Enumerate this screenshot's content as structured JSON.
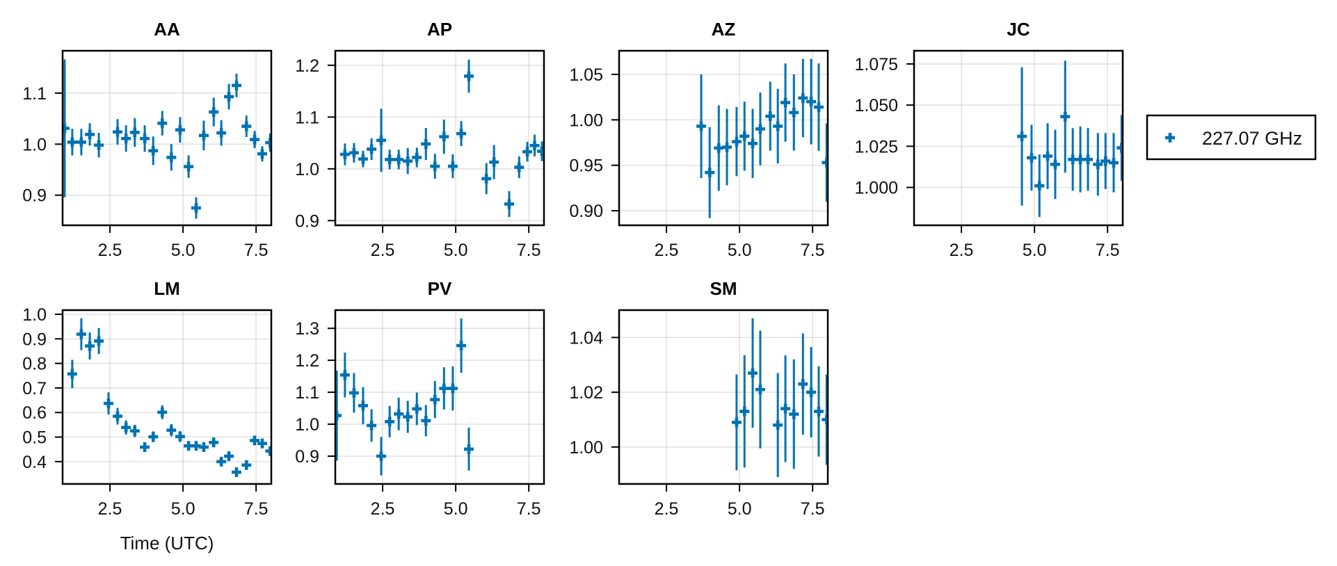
{
  "chart_data": {
    "type": "scatter",
    "subtype": "errorbar-grid",
    "xlabel": "Time (UTC)",
    "xlim": [
      0.88,
      8.02
    ],
    "xticks": [
      2.5,
      5.0,
      7.5
    ],
    "xtick_labels": [
      "2.5",
      "5.0",
      "7.5"
    ],
    "grid": true,
    "color": "#0072B2",
    "legend": {
      "placement": "right",
      "entries": [
        {
          "label": "227.07 GHz",
          "marker": "cross"
        }
      ]
    },
    "panels": [
      {
        "title": "AA",
        "ylim": [
          0.841,
          1.183
        ],
        "yticks": [
          0.9,
          1.0,
          1.1
        ],
        "ytick_labels": [
          "0.9",
          "1.0",
          "1.1"
        ],
        "show_xlabel": false,
        "points": [
          {
            "x": 0.95,
            "y": 1.031,
            "err": 0.135
          },
          {
            "x": 1.21,
            "y": 1.004,
            "err": 0.026
          },
          {
            "x": 1.52,
            "y": 1.004,
            "err": 0.026
          },
          {
            "x": 1.81,
            "y": 1.019,
            "err": 0.022
          },
          {
            "x": 2.12,
            "y": 0.998,
            "err": 0.024
          },
          {
            "x": 2.76,
            "y": 1.024,
            "err": 0.025
          },
          {
            "x": 3.05,
            "y": 1.011,
            "err": 0.026
          },
          {
            "x": 3.35,
            "y": 1.023,
            "err": 0.028
          },
          {
            "x": 3.69,
            "y": 1.011,
            "err": 0.026
          },
          {
            "x": 3.98,
            "y": 0.987,
            "err": 0.028
          },
          {
            "x": 4.29,
            "y": 1.041,
            "err": 0.024
          },
          {
            "x": 4.6,
            "y": 0.974,
            "err": 0.026
          },
          {
            "x": 4.9,
            "y": 1.028,
            "err": 0.025
          },
          {
            "x": 5.19,
            "y": 0.956,
            "err": 0.022
          },
          {
            "x": 5.45,
            "y": 0.875,
            "err": 0.021
          },
          {
            "x": 5.71,
            "y": 1.017,
            "err": 0.029
          },
          {
            "x": 6.05,
            "y": 1.063,
            "err": 0.028
          },
          {
            "x": 6.31,
            "y": 1.022,
            "err": 0.025
          },
          {
            "x": 6.57,
            "y": 1.093,
            "err": 0.025
          },
          {
            "x": 6.83,
            "y": 1.115,
            "err": 0.023
          },
          {
            "x": 7.17,
            "y": 1.035,
            "err": 0.021
          },
          {
            "x": 7.45,
            "y": 1.009,
            "err": 0.017
          },
          {
            "x": 7.71,
            "y": 0.981,
            "err": 0.015
          },
          {
            "x": 7.98,
            "y": 1.003,
            "err": 0.018
          }
        ]
      },
      {
        "title": "AP",
        "ylim": [
          0.891,
          1.228
        ],
        "yticks": [
          0.9,
          1.0,
          1.1,
          1.2
        ],
        "ytick_labels": [
          "0.9",
          "1.0",
          "1.1",
          "1.2"
        ],
        "show_xlabel": false,
        "points": [
          {
            "x": 1.21,
            "y": 1.028,
            "err": 0.021
          },
          {
            "x": 1.52,
            "y": 1.031,
            "err": 0.019
          },
          {
            "x": 1.83,
            "y": 1.019,
            "err": 0.016
          },
          {
            "x": 2.12,
            "y": 1.038,
            "err": 0.021
          },
          {
            "x": 2.45,
            "y": 1.055,
            "err": 0.061
          },
          {
            "x": 2.74,
            "y": 1.018,
            "err": 0.019
          },
          {
            "x": 3.05,
            "y": 1.018,
            "err": 0.019
          },
          {
            "x": 3.36,
            "y": 1.015,
            "err": 0.025
          },
          {
            "x": 3.67,
            "y": 1.022,
            "err": 0.019
          },
          {
            "x": 3.98,
            "y": 1.048,
            "err": 0.031
          },
          {
            "x": 4.29,
            "y": 1.005,
            "err": 0.024
          },
          {
            "x": 4.6,
            "y": 1.062,
            "err": 0.033
          },
          {
            "x": 4.9,
            "y": 1.005,
            "err": 0.023
          },
          {
            "x": 5.19,
            "y": 1.068,
            "err": 0.024
          },
          {
            "x": 5.45,
            "y": 1.179,
            "err": 0.032
          },
          {
            "x": 6.05,
            "y": 0.981,
            "err": 0.03
          },
          {
            "x": 6.31,
            "y": 1.013,
            "err": 0.033
          },
          {
            "x": 6.83,
            "y": 0.932,
            "err": 0.025
          },
          {
            "x": 7.17,
            "y": 1.003,
            "err": 0.021
          },
          {
            "x": 7.45,
            "y": 1.033,
            "err": 0.019
          },
          {
            "x": 7.7,
            "y": 1.045,
            "err": 0.021
          },
          {
            "x": 7.95,
            "y": 1.034,
            "err": 0.019
          }
        ]
      },
      {
        "title": "AZ",
        "ylim": [
          0.884,
          1.076
        ],
        "yticks": [
          0.9,
          0.95,
          1.0,
          1.05
        ],
        "ytick_labels": [
          "0.90",
          "0.95",
          "1.00",
          "1.05"
        ],
        "show_xlabel": false,
        "points": [
          {
            "x": 3.69,
            "y": 0.993,
            "err": 0.057
          },
          {
            "x": 3.98,
            "y": 0.942,
            "err": 0.05
          },
          {
            "x": 4.29,
            "y": 0.969,
            "err": 0.047
          },
          {
            "x": 4.57,
            "y": 0.97,
            "err": 0.042
          },
          {
            "x": 4.9,
            "y": 0.976,
            "err": 0.038
          },
          {
            "x": 5.17,
            "y": 0.982,
            "err": 0.038
          },
          {
            "x": 5.45,
            "y": 0.974,
            "err": 0.038
          },
          {
            "x": 5.71,
            "y": 0.99,
            "err": 0.04
          },
          {
            "x": 6.05,
            "y": 1.004,
            "err": 0.038
          },
          {
            "x": 6.31,
            "y": 0.993,
            "err": 0.041
          },
          {
            "x": 6.57,
            "y": 1.019,
            "err": 0.043
          },
          {
            "x": 6.86,
            "y": 1.008,
            "err": 0.042
          },
          {
            "x": 7.17,
            "y": 1.024,
            "err": 0.043
          },
          {
            "x": 7.45,
            "y": 1.02,
            "err": 0.047
          },
          {
            "x": 7.71,
            "y": 1.014,
            "err": 0.048
          },
          {
            "x": 7.98,
            "y": 0.953,
            "err": 0.043
          }
        ]
      },
      {
        "title": "JC",
        "ylim": [
          0.977,
          1.083
        ],
        "yticks": [
          1.0,
          1.025,
          1.05,
          1.075
        ],
        "ytick_labels": [
          "1.000",
          "1.025",
          "1.050",
          "1.075"
        ],
        "show_xlabel": false,
        "points": [
          {
            "x": 4.57,
            "y": 1.031,
            "err": 0.042
          },
          {
            "x": 4.9,
            "y": 1.018,
            "err": 0.02
          },
          {
            "x": 5.17,
            "y": 1.001,
            "err": 0.019
          },
          {
            "x": 5.45,
            "y": 1.019,
            "err": 0.02
          },
          {
            "x": 5.71,
            "y": 1.014,
            "err": 0.021
          },
          {
            "x": 6.05,
            "y": 1.043,
            "err": 0.034
          },
          {
            "x": 6.31,
            "y": 1.017,
            "err": 0.019
          },
          {
            "x": 6.57,
            "y": 1.017,
            "err": 0.02
          },
          {
            "x": 6.83,
            "y": 1.017,
            "err": 0.019
          },
          {
            "x": 7.17,
            "y": 1.014,
            "err": 0.019
          },
          {
            "x": 7.43,
            "y": 1.016,
            "err": 0.017
          },
          {
            "x": 7.71,
            "y": 1.015,
            "err": 0.018
          },
          {
            "x": 7.98,
            "y": 1.024,
            "err": 0.02
          }
        ]
      },
      {
        "title": "LM",
        "ylim": [
          0.309,
          1.017
        ],
        "yticks": [
          0.4,
          0.5,
          0.6,
          0.7,
          0.8,
          0.9,
          1.0
        ],
        "ytick_labels": [
          "0.4",
          "0.5",
          "0.6",
          "0.7",
          "0.8",
          "0.9",
          "1.0"
        ],
        "show_xlabel": true,
        "points": [
          {
            "x": 1.21,
            "y": 0.757,
            "err": 0.058
          },
          {
            "x": 1.52,
            "y": 0.919,
            "err": 0.065
          },
          {
            "x": 1.81,
            "y": 0.871,
            "err": 0.055
          },
          {
            "x": 2.12,
            "y": 0.891,
            "err": 0.053
          },
          {
            "x": 2.45,
            "y": 0.637,
            "err": 0.045
          },
          {
            "x": 2.76,
            "y": 0.585,
            "err": 0.034
          },
          {
            "x": 3.05,
            "y": 0.539,
            "err": 0.029
          },
          {
            "x": 3.35,
            "y": 0.525,
            "err": 0.025
          },
          {
            "x": 3.69,
            "y": 0.459,
            "err": 0.019
          },
          {
            "x": 3.98,
            "y": 0.501,
            "err": 0.022
          },
          {
            "x": 4.29,
            "y": 0.601,
            "err": 0.028
          },
          {
            "x": 4.6,
            "y": 0.528,
            "err": 0.025
          },
          {
            "x": 4.9,
            "y": 0.502,
            "err": 0.022
          },
          {
            "x": 5.19,
            "y": 0.464,
            "err": 0.019
          },
          {
            "x": 5.45,
            "y": 0.464,
            "err": 0.018
          },
          {
            "x": 5.71,
            "y": 0.459,
            "err": 0.019
          },
          {
            "x": 6.05,
            "y": 0.478,
            "err": 0.02
          },
          {
            "x": 6.31,
            "y": 0.4,
            "err": 0.015
          },
          {
            "x": 6.57,
            "y": 0.422,
            "err": 0.017
          },
          {
            "x": 6.83,
            "y": 0.357,
            "err": 0.013
          },
          {
            "x": 7.17,
            "y": 0.386,
            "err": 0.015
          },
          {
            "x": 7.45,
            "y": 0.486,
            "err": 0.018
          },
          {
            "x": 7.71,
            "y": 0.474,
            "err": 0.017
          },
          {
            "x": 7.98,
            "y": 0.443,
            "err": 0.019
          }
        ]
      },
      {
        "title": "PV",
        "ylim": [
          0.813,
          1.357
        ],
        "yticks": [
          0.9,
          1.0,
          1.1,
          1.2,
          1.3
        ],
        "ytick_labels": [
          "0.9",
          "1.0",
          "1.1",
          "1.2",
          "1.3"
        ],
        "show_xlabel": false,
        "points": [
          {
            "x": 0.93,
            "y": 1.027,
            "err": 0.141
          },
          {
            "x": 1.21,
            "y": 1.154,
            "err": 0.07
          },
          {
            "x": 1.52,
            "y": 1.098,
            "err": 0.062
          },
          {
            "x": 1.83,
            "y": 1.058,
            "err": 0.058
          },
          {
            "x": 2.12,
            "y": 0.996,
            "err": 0.051
          },
          {
            "x": 2.45,
            "y": 0.9,
            "err": 0.06
          },
          {
            "x": 2.74,
            "y": 1.008,
            "err": 0.049
          },
          {
            "x": 3.05,
            "y": 1.032,
            "err": 0.051
          },
          {
            "x": 3.36,
            "y": 1.023,
            "err": 0.05
          },
          {
            "x": 3.67,
            "y": 1.048,
            "err": 0.051
          },
          {
            "x": 3.98,
            "y": 1.011,
            "err": 0.049
          },
          {
            "x": 4.29,
            "y": 1.077,
            "err": 0.058
          },
          {
            "x": 4.6,
            "y": 1.112,
            "err": 0.066
          },
          {
            "x": 4.9,
            "y": 1.112,
            "err": 0.069
          },
          {
            "x": 5.19,
            "y": 1.246,
            "err": 0.085
          },
          {
            "x": 5.45,
            "y": 0.922,
            "err": 0.067
          }
        ]
      },
      {
        "title": "SM",
        "ylim": [
          0.9865,
          1.05
        ],
        "yticks": [
          1.0,
          1.02,
          1.04
        ],
        "ytick_labels": [
          "1.00",
          "1.02",
          "1.04"
        ],
        "show_xlabel": false,
        "points": [
          {
            "x": 4.9,
            "y": 1.009,
            "err": 0.0175
          },
          {
            "x": 5.17,
            "y": 1.013,
            "err": 0.0205
          },
          {
            "x": 5.45,
            "y": 1.027,
            "err": 0.02
          },
          {
            "x": 5.71,
            "y": 1.021,
            "err": 0.0215
          },
          {
            "x": 6.31,
            "y": 1.008,
            "err": 0.019
          },
          {
            "x": 6.57,
            "y": 1.014,
            "err": 0.0195
          },
          {
            "x": 6.86,
            "y": 1.012,
            "err": 0.02
          },
          {
            "x": 7.17,
            "y": 1.023,
            "err": 0.0185
          },
          {
            "x": 7.45,
            "y": 1.02,
            "err": 0.0165
          },
          {
            "x": 7.71,
            "y": 1.013,
            "err": 0.0165
          },
          {
            "x": 7.98,
            "y": 1.01,
            "err": 0.0165
          }
        ]
      }
    ]
  }
}
